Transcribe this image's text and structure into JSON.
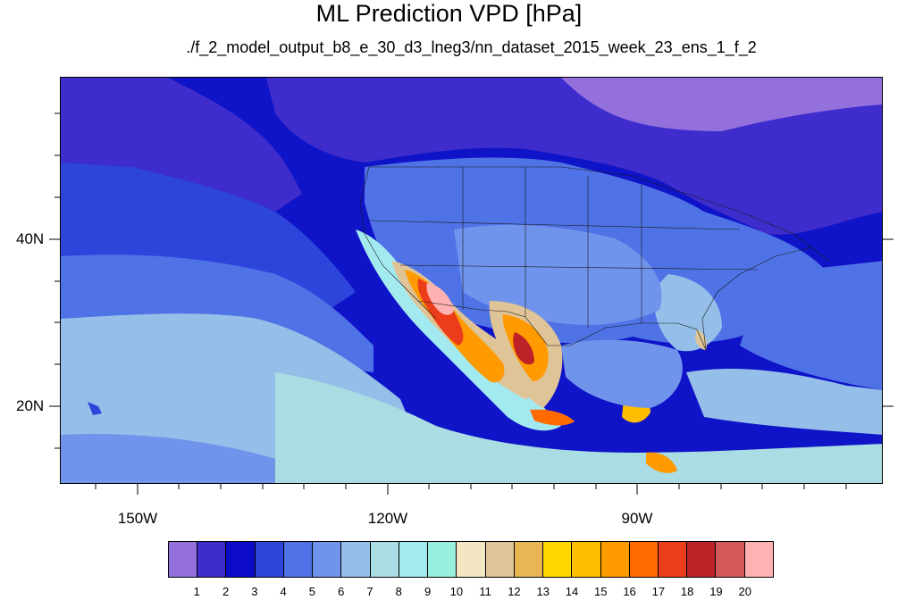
{
  "title": "ML Prediction VPD [hPa]",
  "subtitle": "./f_2_model_output_b8_e_30_d3_lneg3/nn_dataset_2015_week_23_ens_1_f_2",
  "latitude_labels": [
    {
      "text": "40N",
      "value": 40
    },
    {
      "text": "20N",
      "value": 20
    }
  ],
  "longitude_labels": [
    {
      "text": "150W",
      "value": -150
    },
    {
      "text": "120W",
      "value": -120
    },
    {
      "text": "90W",
      "value": -90
    }
  ],
  "colorbar": {
    "colors": [
      "#9370db",
      "#3e2dcc",
      "#0b0bc8",
      "#2e45dc",
      "#4f73e6",
      "#7093ec",
      "#95bfe8",
      "#aadce3",
      "#a3eaf0",
      "#98efdd",
      "#f3e7c3",
      "#dfc497",
      "#e9b655",
      "#ffd800",
      "#ffbd00",
      "#ff9a00",
      "#ff6b00",
      "#eb3d1a",
      "#bd2228",
      "#d45a5a",
      "#ffb2b2"
    ],
    "labels": [
      "1",
      "2",
      "3",
      "4",
      "5",
      "6",
      "7",
      "8",
      "9",
      "10",
      "11",
      "12",
      "13",
      "14",
      "15",
      "16",
      "17",
      "18",
      "19",
      "20"
    ]
  }
}
